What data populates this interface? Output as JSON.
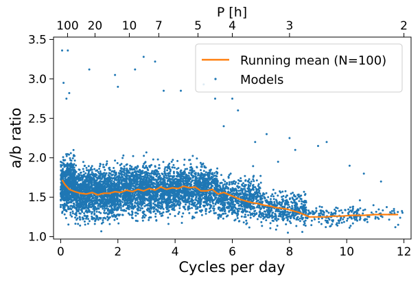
{
  "chart_data": {
    "type": "scatter",
    "xlabel": "Cycles per day",
    "ylabel": "a/b ratio",
    "top_axis_label": "P [h]",
    "xlim": [
      -0.25,
      12.25
    ],
    "ylim": [
      0.97,
      3.53
    ],
    "x_ticks": [
      0,
      2,
      4,
      6,
      8,
      10,
      12
    ],
    "y_ticks": [
      1.0,
      1.5,
      2.0,
      2.5,
      3.0,
      3.5
    ],
    "y_tick_labels": [
      "1.0",
      "1.5",
      "2.0",
      "2.5",
      "3.0",
      "3.5"
    ],
    "top_ticks": [
      {
        "label": "100",
        "cpd": 0.24
      },
      {
        "label": "20",
        "cpd": 1.2
      },
      {
        "label": "10",
        "cpd": 2.4
      },
      {
        "label": "7",
        "cpd": 3.43
      },
      {
        "label": "5",
        "cpd": 4.8
      },
      {
        "label": "4",
        "cpd": 6.0
      },
      {
        "label": "3",
        "cpd": 8.0
      },
      {
        "label": "2",
        "cpd": 12.0
      }
    ],
    "legend": {
      "position": "upper-right",
      "entries": [
        "Running mean (N=100)",
        "Models"
      ]
    },
    "series": [
      {
        "name": "Running mean (N=100)",
        "kind": "line",
        "color": "#ff7f0e",
        "x": [
          0.05,
          0.15,
          0.3,
          0.5,
          0.7,
          0.9,
          1.1,
          1.3,
          1.5,
          1.7,
          1.9,
          2.1,
          2.3,
          2.5,
          2.7,
          2.9,
          3.1,
          3.3,
          3.5,
          3.7,
          3.9,
          4.1,
          4.3,
          4.5,
          4.7,
          4.9,
          5.1,
          5.3,
          5.5,
          5.7,
          5.9,
          6.1,
          6.3,
          6.5,
          6.7,
          6.9,
          7.1,
          7.3,
          7.5,
          7.7,
          7.9,
          8.1,
          8.3,
          8.5,
          8.7,
          8.9,
          9.1,
          9.3,
          9.5,
          9.8,
          10.2,
          10.6,
          11.0,
          11.4,
          11.8
        ],
        "y": [
          1.72,
          1.66,
          1.6,
          1.57,
          1.55,
          1.54,
          1.56,
          1.53,
          1.55,
          1.55,
          1.57,
          1.56,
          1.59,
          1.57,
          1.6,
          1.58,
          1.61,
          1.59,
          1.63,
          1.6,
          1.62,
          1.61,
          1.64,
          1.62,
          1.63,
          1.58,
          1.58,
          1.6,
          1.54,
          1.56,
          1.53,
          1.5,
          1.47,
          1.45,
          1.43,
          1.42,
          1.4,
          1.39,
          1.37,
          1.36,
          1.35,
          1.33,
          1.31,
          1.28,
          1.25,
          1.25,
          1.25,
          1.25,
          1.26,
          1.26,
          1.27,
          1.27,
          1.28,
          1.28,
          1.28
        ]
      },
      {
        "name": "Models",
        "kind": "scatter",
        "color": "#1f77b4",
        "description": "dense cloud of about 6000 model points",
        "outliers": {
          "x": [
            0.05,
            0.25,
            0.1,
            0.3,
            0.2,
            1.0,
            2.6,
            2.9,
            3.3,
            2.0,
            1.9,
            3.6,
            4.2,
            5.0,
            5.4,
            6.0,
            6.2,
            7.2,
            8.0,
            8.2,
            9.0,
            9.3,
            10.1,
            10.6,
            11.2,
            11.8,
            11.7,
            7.6,
            6.8,
            5.7
          ],
          "y": [
            3.36,
            3.36,
            2.95,
            2.82,
            2.75,
            3.12,
            3.12,
            3.28,
            3.22,
            2.9,
            3.05,
            2.85,
            2.85,
            2.93,
            2.75,
            2.75,
            2.6,
            2.3,
            2.25,
            2.1,
            2.15,
            2.2,
            1.9,
            1.8,
            1.7,
            1.15,
            1.12,
            1.95,
            2.2,
            2.4
          ]
        },
        "bulk": [
          {
            "x_range": [
              0.0,
              0.5
            ],
            "mean": 1.66,
            "spread": 0.3,
            "count": 650
          },
          {
            "x_range": [
              0.5,
              2.0
            ],
            "mean": 1.56,
            "spread": 0.28,
            "count": 1400
          },
          {
            "x_range": [
              2.0,
              4.0
            ],
            "mean": 1.6,
            "spread": 0.27,
            "count": 1600
          },
          {
            "x_range": [
              4.0,
              5.5
            ],
            "mean": 1.61,
            "spread": 0.25,
            "count": 1000
          },
          {
            "x_range": [
              5.5,
              7.0
            ],
            "mean": 1.48,
            "spread": 0.22,
            "count": 650
          },
          {
            "x_range": [
              7.0,
              8.6
            ],
            "mean": 1.36,
            "spread": 0.18,
            "count": 420
          },
          {
            "x_range": [
              8.6,
              10.5
            ],
            "mean": 1.27,
            "spread": 0.12,
            "count": 150
          },
          {
            "x_range": [
              10.5,
              12.0
            ],
            "mean": 1.28,
            "spread": 0.1,
            "count": 40
          }
        ]
      }
    ]
  }
}
